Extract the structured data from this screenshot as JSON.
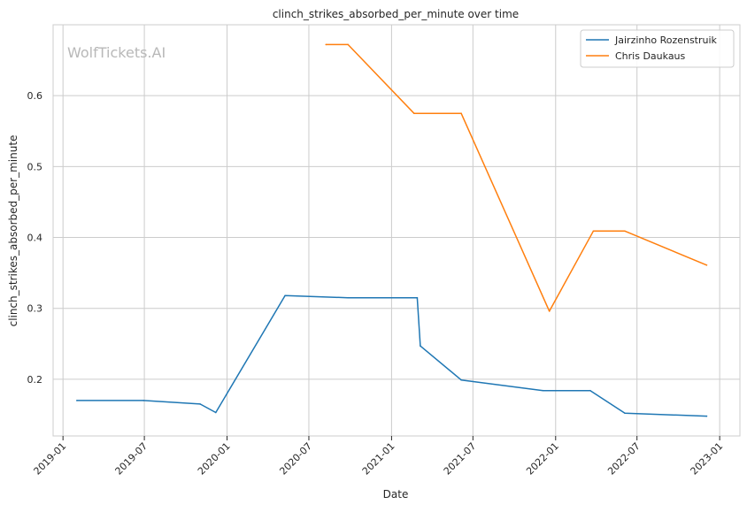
{
  "watermark": "WolfTickets.AI",
  "chart_data": {
    "type": "line",
    "title": "clinch_strikes_absorbed_per_minute over time",
    "xlabel": "Date",
    "ylabel": "clinch_strikes_absorbed_per_minute",
    "x_ticks": [
      "2019-01",
      "2019-07",
      "2020-01",
      "2020-07",
      "2021-01",
      "2021-07",
      "2022-01",
      "2022-07",
      "2023-01"
    ],
    "y_ticks": [
      "0.2",
      "0.3",
      "0.4",
      "0.5",
      "0.6"
    ],
    "xlim": [
      "2018-12-10",
      "2023-02-15"
    ],
    "ylim": [
      0.12,
      0.7
    ],
    "grid": true,
    "legend": "top-right",
    "series": [
      {
        "name": "Jairzinho Rozenstruik",
        "color": "#1f77b4",
        "points": [
          [
            "2019-02-01",
            0.17
          ],
          [
            "2019-06-29",
            0.17
          ],
          [
            "2019-11-02",
            0.165
          ],
          [
            "2019-12-07",
            0.153
          ],
          [
            "2020-05-09",
            0.318
          ],
          [
            "2020-09-26",
            0.315
          ],
          [
            "2021-02-27",
            0.315
          ],
          [
            "2021-03-06",
            0.247
          ],
          [
            "2021-06-05",
            0.199
          ],
          [
            "2021-12-04",
            0.184
          ],
          [
            "2022-03-19",
            0.184
          ],
          [
            "2022-06-04",
            0.152
          ],
          [
            "2022-12-03",
            0.148
          ]
        ]
      },
      {
        "name": "Chris Daukaus",
        "color": "#ff7f0e",
        "points": [
          [
            "2020-08-08",
            0.672
          ],
          [
            "2020-09-26",
            0.672
          ],
          [
            "2021-02-20",
            0.575
          ],
          [
            "2021-06-05",
            0.575
          ],
          [
            "2021-12-18",
            0.296
          ],
          [
            "2022-03-26",
            0.409
          ],
          [
            "2022-06-04",
            0.409
          ],
          [
            "2022-12-03",
            0.361
          ]
        ]
      }
    ]
  }
}
